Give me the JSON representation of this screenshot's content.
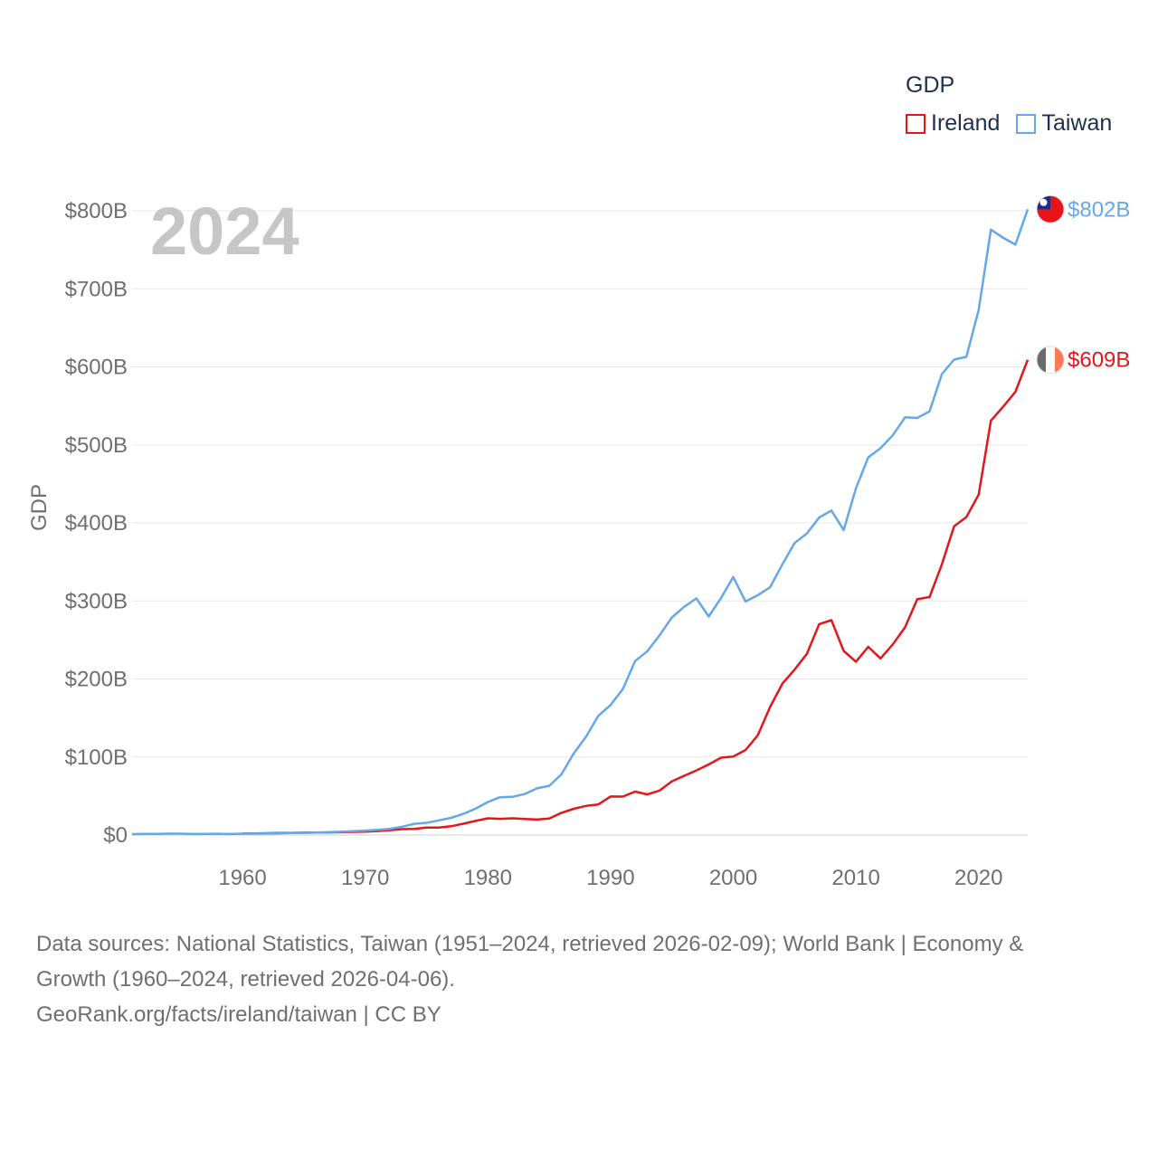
{
  "chart_data": {
    "type": "line",
    "year_label": "2024",
    "ylabel": "GDP",
    "legend_title": "GDP",
    "ylim": [
      0,
      800
    ],
    "xlim": [
      1951,
      2024
    ],
    "x_ticks": [
      1960,
      1970,
      1980,
      1990,
      2000,
      2010,
      2020
    ],
    "y_ticks": [
      {
        "value": 0,
        "label": "$0"
      },
      {
        "value": 100,
        "label": "$100B"
      },
      {
        "value": 200,
        "label": "$200B"
      },
      {
        "value": 300,
        "label": "$300B"
      },
      {
        "value": 400,
        "label": "$400B"
      },
      {
        "value": 500,
        "label": "$500B"
      },
      {
        "value": 600,
        "label": "$600B"
      },
      {
        "value": 700,
        "label": "$700B"
      },
      {
        "value": 800,
        "label": "$800B"
      }
    ],
    "series": [
      {
        "name": "Ireland",
        "color": "#e3161a",
        "end_label": "$609B",
        "flag_icon": "ireland-flag-icon",
        "x": [
          1960,
          1961,
          1962,
          1963,
          1964,
          1965,
          1966,
          1967,
          1968,
          1969,
          1970,
          1971,
          1972,
          1973,
          1974,
          1975,
          1976,
          1977,
          1978,
          1979,
          1980,
          1981,
          1982,
          1983,
          1984,
          1985,
          1986,
          1987,
          1988,
          1989,
          1990,
          1991,
          1992,
          1993,
          1994,
          1995,
          1996,
          1997,
          1998,
          1999,
          2000,
          2001,
          2002,
          2003,
          2004,
          2005,
          2006,
          2007,
          2008,
          2009,
          2010,
          2011,
          2012,
          2013,
          2014,
          2015,
          2016,
          2017,
          2018,
          2019,
          2020,
          2021,
          2022,
          2023,
          2024
        ],
        "values": [
          1.9,
          2.1,
          2.3,
          2.5,
          2.8,
          3.0,
          3.2,
          3.4,
          3.6,
          4.0,
          4.4,
          5.1,
          6.3,
          7.5,
          7.9,
          9.5,
          9.6,
          11.2,
          14.5,
          18.1,
          21.5,
          20.8,
          21.5,
          20.5,
          19.8,
          21.1,
          28.5,
          33.6,
          37.3,
          39.2,
          49.4,
          49.3,
          55.6,
          52.0,
          57.0,
          68.9,
          75.9,
          82.8,
          90.4,
          99.1,
          100.5,
          109.0,
          127.8,
          164.0,
          194.0,
          211.9,
          232.2,
          270.3,
          275.4,
          236.0,
          222.2,
          241.2,
          226.3,
          244.3,
          266.2,
          302.1,
          305.1,
          346.9,
          395.7,
          407.5,
          436.3,
          531.1,
          549.0,
          568.0,
          609.0
        ]
      },
      {
        "name": "Taiwan",
        "color": "#65a7e8",
        "end_label": "$802B",
        "flag_icon": "taiwan-flag-icon",
        "x": [
          1951,
          1952,
          1953,
          1954,
          1955,
          1956,
          1957,
          1958,
          1959,
          1960,
          1961,
          1962,
          1963,
          1964,
          1965,
          1966,
          1967,
          1968,
          1969,
          1970,
          1971,
          1972,
          1973,
          1974,
          1975,
          1976,
          1977,
          1978,
          1979,
          1980,
          1981,
          1982,
          1983,
          1984,
          1985,
          1986,
          1987,
          1988,
          1989,
          1990,
          1991,
          1992,
          1993,
          1994,
          1995,
          1996,
          1997,
          1998,
          1999,
          2000,
          2001,
          2002,
          2003,
          2004,
          2005,
          2006,
          2007,
          2008,
          2009,
          2010,
          2011,
          2012,
          2013,
          2014,
          2015,
          2016,
          2017,
          2018,
          2019,
          2020,
          2021,
          2022,
          2023,
          2024
        ],
        "values": [
          1.2,
          1.4,
          1.5,
          1.7,
          1.7,
          1.3,
          1.5,
          1.6,
          1.3,
          1.7,
          1.8,
          2.0,
          2.2,
          2.5,
          2.8,
          3.1,
          3.6,
          4.2,
          4.9,
          5.7,
          6.6,
          7.9,
          10.7,
          14.4,
          15.6,
          18.8,
          22.0,
          27.1,
          33.9,
          42.3,
          48.5,
          48.9,
          52.5,
          59.8,
          63.1,
          77.9,
          104.7,
          126.2,
          152.7,
          166.6,
          187.1,
          222.9,
          235.6,
          256.2,
          279.0,
          292.5,
          303.3,
          280.0,
          303.8,
          330.7,
          299.3,
          307.4,
          317.4,
          346.9,
          374.1,
          386.5,
          406.9,
          415.9,
          390.8,
          444.3,
          483.97,
          495.8,
          512.2,
          535.3,
          534.5,
          543.0,
          590.7,
          609.3,
          612.9,
          673.2,
          775.9,
          765.3,
          756.6,
          802.0
        ]
      }
    ]
  },
  "source": {
    "line1": "Data sources: National Statistics, Taiwan (1951–2024, retrieved 2026-02-09); World Bank | Economy &",
    "line2": "Growth (1960–2024, retrieved 2026-04-06).",
    "line3": "GeoRank.org/facts/ireland/taiwan | CC BY"
  }
}
